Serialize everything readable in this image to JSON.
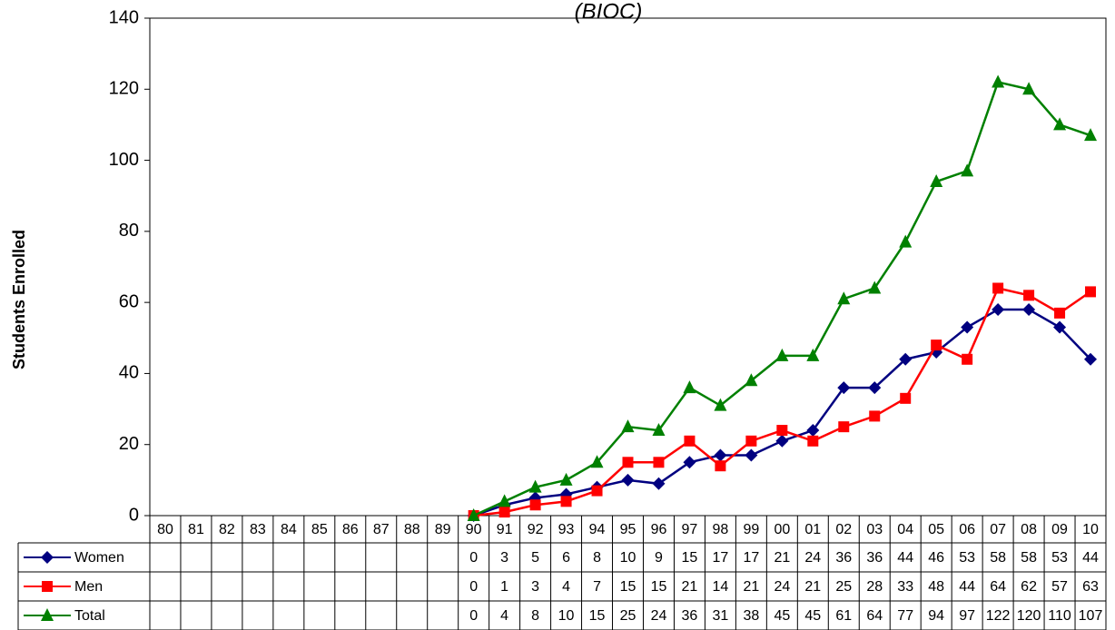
{
  "chart_data": {
    "type": "line",
    "title": "(BIOC)",
    "ylabel": "Students Enrolled",
    "categories": [
      "80",
      "81",
      "82",
      "83",
      "84",
      "85",
      "86",
      "87",
      "88",
      "89",
      "90",
      "91",
      "92",
      "93",
      "94",
      "95",
      "96",
      "97",
      "98",
      "99",
      "00",
      "01",
      "02",
      "03",
      "04",
      "05",
      "06",
      "07",
      "08",
      "09",
      "10"
    ],
    "series": [
      {
        "name": "Women",
        "color": "#000080",
        "marker": "diamond",
        "values": [
          null,
          null,
          null,
          null,
          null,
          null,
          null,
          null,
          null,
          null,
          0,
          3,
          5,
          6,
          8,
          10,
          9,
          15,
          17,
          17,
          21,
          24,
          36,
          36,
          44,
          46,
          53,
          58,
          58,
          53,
          44
        ]
      },
      {
        "name": "Men",
        "color": "#ff0000",
        "marker": "square",
        "values": [
          null,
          null,
          null,
          null,
          null,
          null,
          null,
          null,
          null,
          null,
          0,
          1,
          3,
          4,
          7,
          15,
          15,
          21,
          14,
          21,
          24,
          21,
          25,
          28,
          33,
          48,
          44,
          64,
          62,
          57,
          63
        ]
      },
      {
        "name": "Total",
        "color": "#008000",
        "marker": "triangle",
        "values": [
          null,
          null,
          null,
          null,
          null,
          null,
          null,
          null,
          null,
          null,
          0,
          4,
          8,
          10,
          15,
          25,
          24,
          36,
          31,
          38,
          45,
          45,
          61,
          64,
          77,
          94,
          97,
          122,
          120,
          110,
          107
        ]
      }
    ],
    "ylim": [
      0,
      140
    ],
    "yticks": [
      0,
      20,
      40,
      60,
      80,
      100,
      120,
      140
    ],
    "grid": false,
    "data_table": true
  }
}
